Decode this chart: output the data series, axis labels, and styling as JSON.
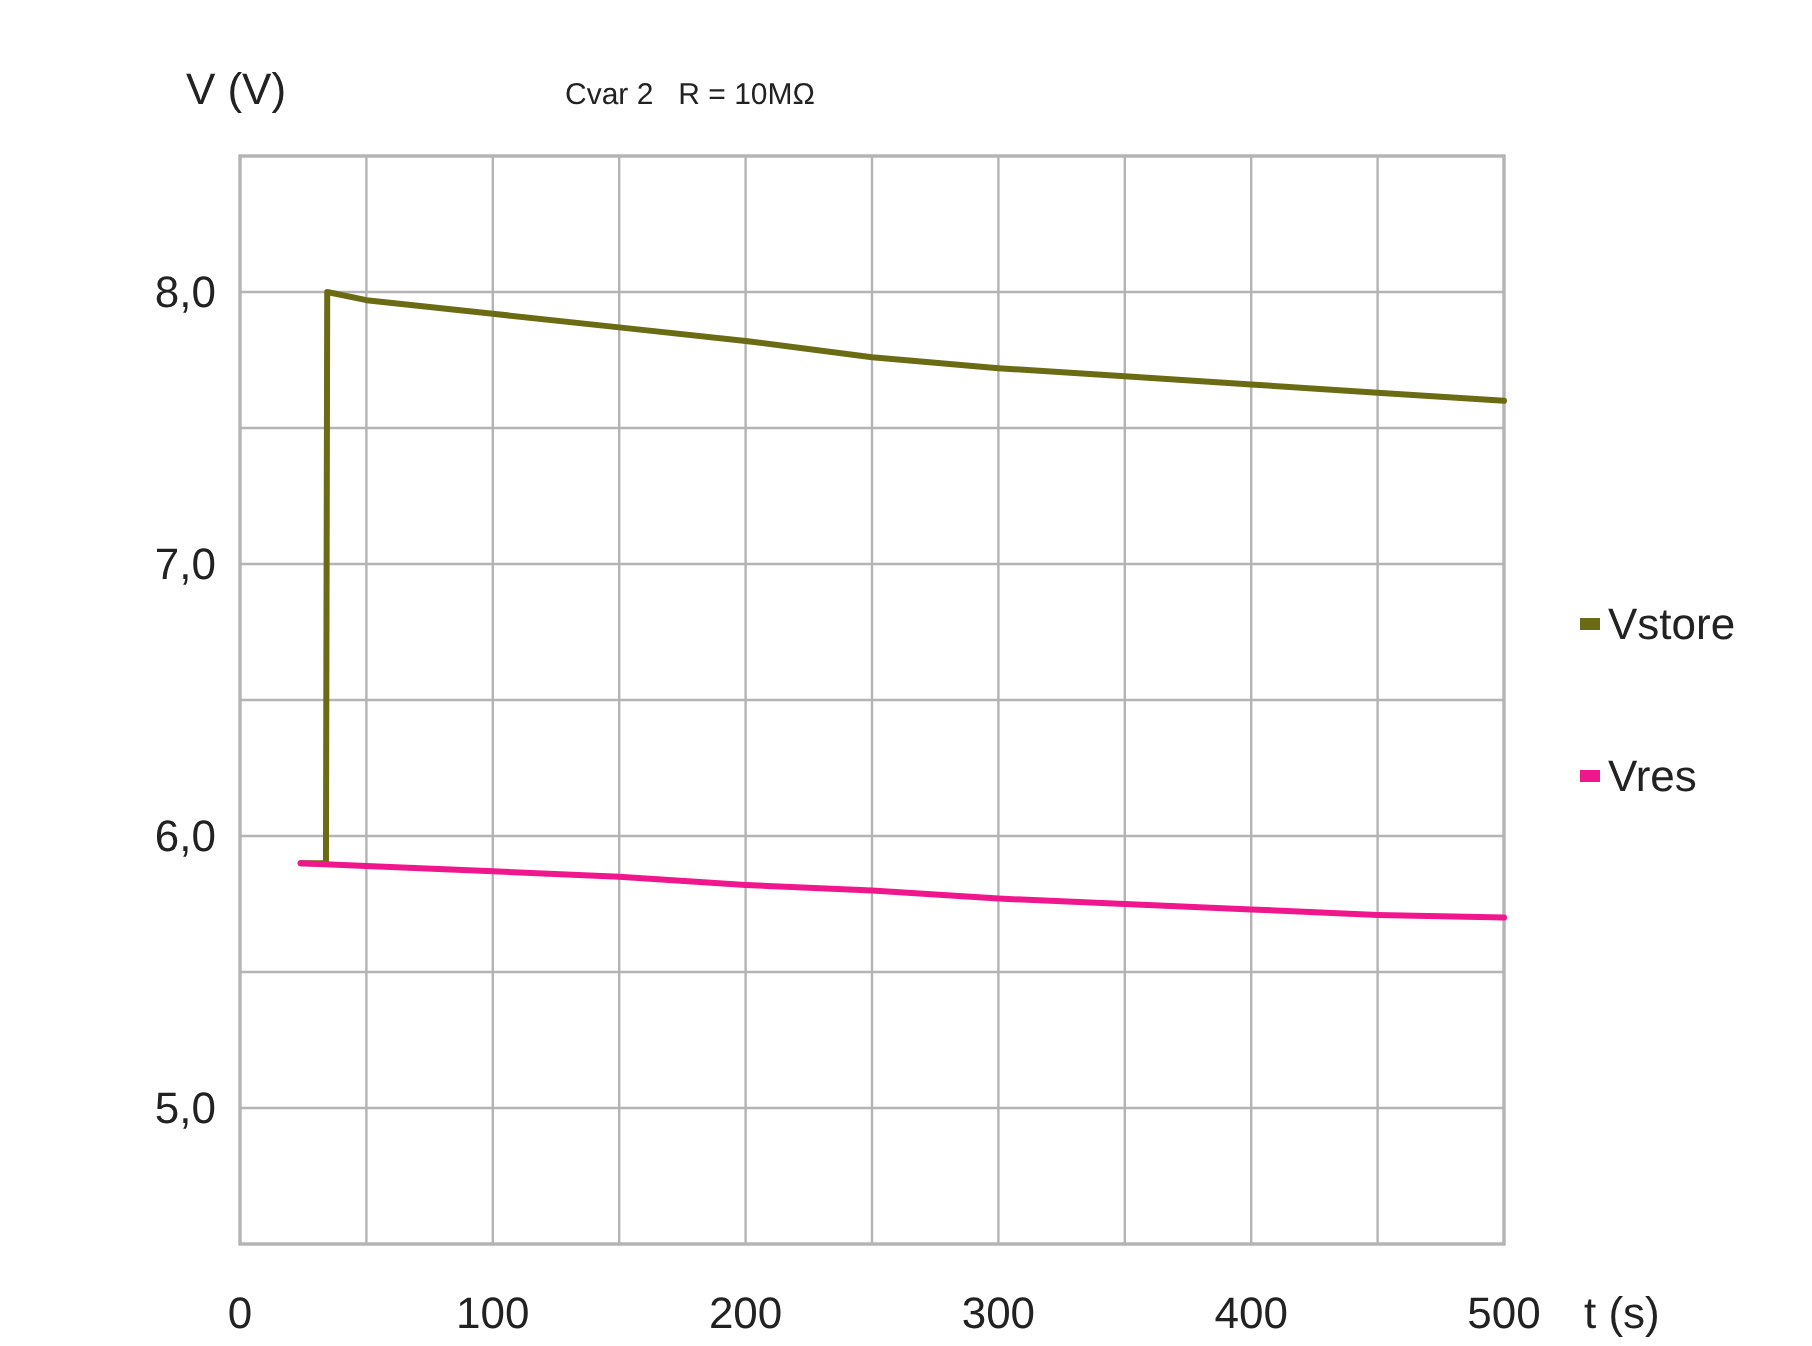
{
  "chart_data": {
    "type": "line",
    "title": "Cvar 2   R = 10MΩ",
    "xlabel": "t (s)",
    "ylabel": "V (V)",
    "xlim": [
      0,
      500
    ],
    "ylim": [
      4.5,
      8.5
    ],
    "xticks": [
      0,
      {
        "value": 50,
        "label": null
      },
      100,
      {
        "value": 150,
        "label": null
      },
      200,
      {
        "value": 250,
        "label": null
      },
      300,
      {
        "value": 350,
        "label": null
      },
      400,
      {
        "value": 450,
        "label": null
      },
      500
    ],
    "yticks": [
      {
        "value": 4.5,
        "label": null
      },
      {
        "value": 5,
        "label": "5,0"
      },
      {
        "value": 5.5,
        "label": null
      },
      {
        "value": 6,
        "label": "6,0"
      },
      {
        "value": 6.5,
        "label": null
      },
      {
        "value": 7,
        "label": "7,0"
      },
      {
        "value": 7.5,
        "label": null
      },
      {
        "value": 8,
        "label": "8,0"
      },
      {
        "value": 8.5,
        "label": null
      }
    ],
    "grid": true,
    "legend": "right",
    "marker": "none",
    "line_style": "solid",
    "series": [
      {
        "name": "Vstore",
        "color": "#6b6b14",
        "x": [
          24,
          34,
          34.5,
          50,
          100,
          150,
          200,
          250,
          300,
          350,
          400,
          450,
          500
        ],
        "values": [
          5.9,
          5.9,
          8.0,
          7.97,
          7.92,
          7.87,
          7.82,
          7.76,
          7.72,
          7.69,
          7.66,
          7.63,
          7.6
        ]
      },
      {
        "name": "Vres",
        "color": "#f0168c",
        "x": [
          24,
          50,
          100,
          150,
          200,
          250,
          300,
          350,
          400,
          450,
          500
        ],
        "values": [
          5.9,
          5.89,
          5.87,
          5.85,
          5.82,
          5.8,
          5.77,
          5.75,
          5.73,
          5.71,
          5.7
        ]
      }
    ]
  }
}
